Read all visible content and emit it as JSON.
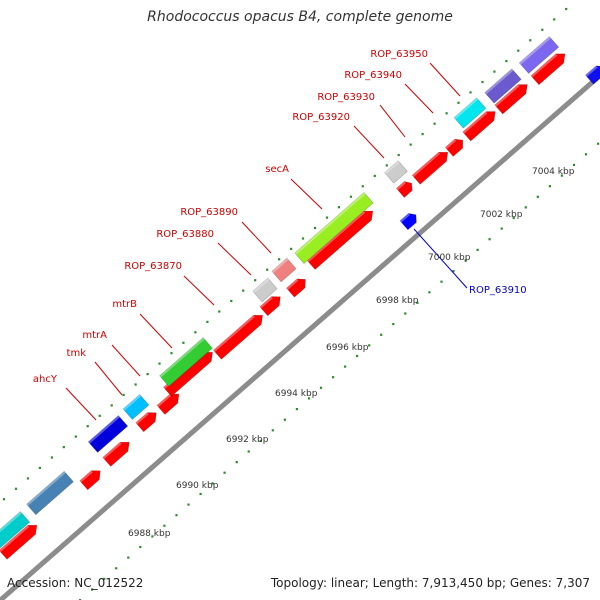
{
  "title": "Rhodococcus opacus B4, complete genome",
  "footer": {
    "accession": "Accession: NC_012522",
    "summary": "Topology: linear; Length: 7,913,450 bp; Genes: 7,307"
  },
  "colors": {
    "background": "#ffffff",
    "backbone": "#8c8c8c",
    "reverse_gene": "#ff0000",
    "forward_label": "#cc0000",
    "reverse_label": "#0000cc",
    "tick_dots": "#2e8b2e"
  },
  "ruler": {
    "unit": "kbp",
    "ticks": [
      {
        "kbp": 6988,
        "label": "6988 kbp"
      },
      {
        "kbp": 6990,
        "label": "6990 kbp"
      },
      {
        "kbp": 6992,
        "label": "6992 kbp"
      },
      {
        "kbp": 6994,
        "label": "6994 kbp"
      },
      {
        "kbp": 6996,
        "label": "6996 kbp"
      },
      {
        "kbp": 6998,
        "label": "6998 kbp"
      },
      {
        "kbp": 7000,
        "label": "7000 kbp"
      },
      {
        "kbp": 7002,
        "label": "7002 kbp"
      },
      {
        "kbp": 7004,
        "label": "7004 kbp"
      }
    ]
  },
  "labeled_genes": [
    {
      "name": "ahcY",
      "strand": "forward",
      "color": "#0000dd"
    },
    {
      "name": "tmk",
      "strand": "forward",
      "color": "#00bfff"
    },
    {
      "name": "mtrA",
      "strand": "forward",
      "color": "#00bfff"
    },
    {
      "name": "mtrB",
      "strand": "forward",
      "color": "#33cc33"
    },
    {
      "name": "ROP_63870",
      "strand": "forward",
      "color": "#cccccc"
    },
    {
      "name": "ROP_63880",
      "strand": "forward",
      "color": "#cccccc"
    },
    {
      "name": "ROP_63890",
      "strand": "forward",
      "color": "#f08080"
    },
    {
      "name": "secA",
      "strand": "forward",
      "color": "#99ee22"
    },
    {
      "name": "ROP_63920",
      "strand": "forward",
      "color": "#cccccc"
    },
    {
      "name": "ROP_63930",
      "strand": "forward",
      "color": "#00e5ee"
    },
    {
      "name": "ROP_63940",
      "strand": "forward",
      "color": "#6a5acd"
    },
    {
      "name": "ROP_63950",
      "strand": "forward",
      "color": "#7b68ee"
    },
    {
      "name": "ROP_63910",
      "strand": "reverse",
      "color": "#0000ff"
    }
  ]
}
